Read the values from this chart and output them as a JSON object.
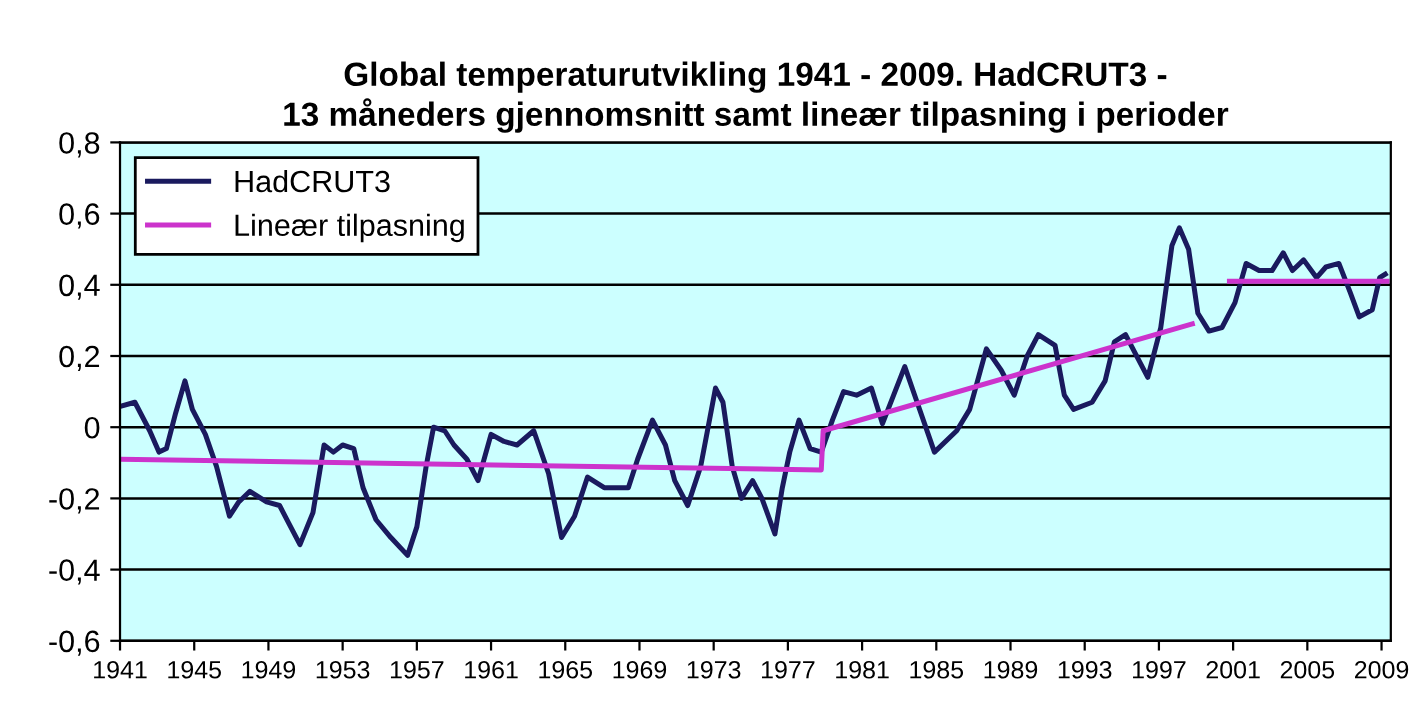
{
  "chart_data": {
    "type": "line",
    "title": "Global temperaturutvikling 1941 - 2009. HadCRUT3 -\n13 måneders gjennomsnitt samt lineær tilpasning i perioder",
    "xlim": [
      1941,
      2009.5
    ],
    "xticks": [
      1941,
      1945,
      1949,
      1953,
      1957,
      1961,
      1965,
      1969,
      1973,
      1977,
      1981,
      1985,
      1989,
      1993,
      1997,
      2001,
      2005,
      2009
    ],
    "ylim": [
      -0.6,
      0.8
    ],
    "yticks": [
      {
        "value": -0.6,
        "label": "-0,6"
      },
      {
        "value": -0.4,
        "label": "-0,4"
      },
      {
        "value": -0.2,
        "label": "-0,2"
      },
      0,
      {
        "value": 0.2,
        "label": "0,2"
      },
      {
        "value": 0.4,
        "label": "0,4"
      },
      {
        "value": 0.6,
        "label": "0,6"
      },
      {
        "value": 0.8,
        "label": "0,8"
      }
    ],
    "grid": "y",
    "legend": "top left",
    "series": [
      {
        "name": "HadCRUT3",
        "color": "#1a1a5e",
        "x": [
          1941.1,
          1941.8,
          1942.6,
          1943.1,
          1943.5,
          1944.0,
          1944.5,
          1944.9,
          1945.6,
          1946.2,
          1946.9,
          1947.4,
          1948.0,
          1948.9,
          1949.6,
          1950.1,
          1950.7,
          1951.4,
          1952.0,
          1952.5,
          1953.0,
          1953.6,
          1954.1,
          1954.8,
          1955.6,
          1956.5,
          1957.0,
          1957.5,
          1957.9,
          1958.5,
          1959.0,
          1959.7,
          1960.3,
          1961.0,
          1961.7,
          1962.4,
          1963.3,
          1964.1,
          1964.8,
          1965.5,
          1966.2,
          1967.1,
          1968.4,
          1968.9,
          1969.7,
          1970.4,
          1970.9,
          1971.6,
          1972.3,
          1973.1,
          1973.5,
          1974.0,
          1974.5,
          1975.1,
          1975.6,
          1976.3,
          1976.7,
          1977.1,
          1977.6,
          1978.2,
          1978.8,
          1979.4,
          1980.0,
          1980.7,
          1981.5,
          1982.1,
          1982.7,
          1983.3,
          1983.9,
          1984.9,
          1986.1,
          1986.8,
          1987.7,
          1988.5,
          1989.2,
          1989.9,
          1990.5,
          1991.4,
          1991.9,
          1992.4,
          1993.4,
          1994.1,
          1994.6,
          1995.2,
          1995.9,
          1996.4,
          1997.1,
          1997.7,
          1998.1,
          1998.6,
          1999.1,
          1999.7,
          2000.4,
          2001.1,
          2001.7,
          2002.4,
          2003.1,
          2003.7,
          2004.2,
          2004.8,
          2005.5,
          2006.0,
          2006.7,
          2007.3,
          2007.8,
          2008.5,
          2008.9,
          2009.2
        ],
        "values": [
          0.06,
          0.07,
          -0.01,
          -0.07,
          -0.06,
          0.04,
          0.13,
          0.05,
          -0.02,
          -0.11,
          -0.25,
          -0.21,
          -0.18,
          -0.21,
          -0.22,
          -0.27,
          -0.33,
          -0.24,
          -0.05,
          -0.07,
          -0.05,
          -0.06,
          -0.17,
          -0.26,
          -0.31,
          -0.36,
          -0.28,
          -0.11,
          0.0,
          -0.01,
          -0.05,
          -0.09,
          -0.15,
          -0.02,
          -0.04,
          -0.05,
          -0.01,
          -0.13,
          -0.31,
          -0.25,
          -0.14,
          -0.17,
          -0.17,
          -0.09,
          0.02,
          -0.05,
          -0.15,
          -0.22,
          -0.11,
          0.11,
          0.07,
          -0.11,
          -0.2,
          -0.15,
          -0.2,
          -0.3,
          -0.17,
          -0.07,
          0.02,
          -0.06,
          -0.07,
          0.02,
          0.1,
          0.09,
          0.11,
          0.01,
          0.09,
          0.17,
          0.08,
          -0.07,
          -0.01,
          0.05,
          0.22,
          0.16,
          0.09,
          0.2,
          0.26,
          0.23,
          0.09,
          0.05,
          0.07,
          0.13,
          0.24,
          0.26,
          0.19,
          0.14,
          0.28,
          0.51,
          0.56,
          0.5,
          0.32,
          0.27,
          0.28,
          0.35,
          0.46,
          0.44,
          0.44,
          0.49,
          0.44,
          0.47,
          0.42,
          0.45,
          0.46,
          0.38,
          0.31,
          0.33,
          0.42,
          0.43
        ]
      },
      {
        "name": "Lineær tilpasning",
        "color": "#cc33cc",
        "x": [
          1941.0,
          1978.8,
          1978.9,
          1998.8,
          1999.8,
          2000.8,
          2009.3
        ],
        "values": [
          -0.09,
          -0.12,
          -0.01,
          0.29,
          null,
          0.41,
          0.41
        ]
      }
    ]
  }
}
